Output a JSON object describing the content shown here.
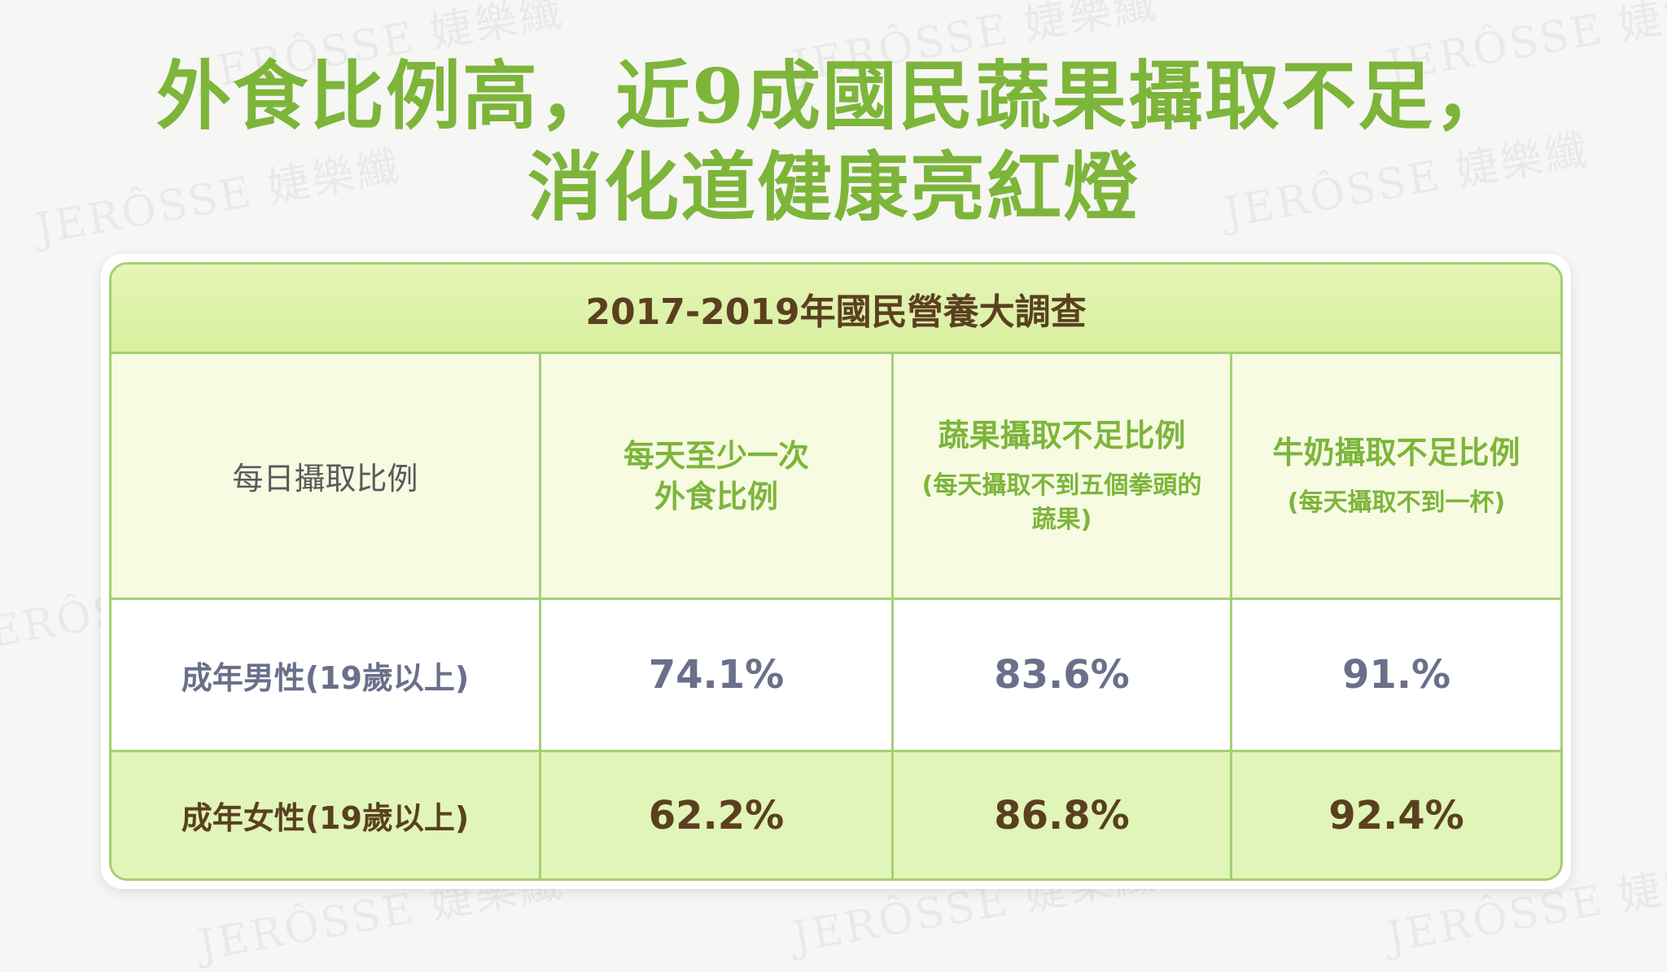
{
  "watermark": {
    "brand": "JERÔSSE",
    "brand_cn": "婕樂纖"
  },
  "headline": {
    "line1": "外食比例高，近9成國民蔬果攝取不足，",
    "line2": "消化道健康亮紅燈"
  },
  "table": {
    "title": "2017-2019年國民營養大調查",
    "corner_label": "每日攝取比例",
    "columns": [
      {
        "label_line1": "每天至少一次",
        "label_line2": "外食比例",
        "note": ""
      },
      {
        "label_line1": "蔬果攝取不足比例",
        "label_line2": "",
        "note": "(每天攝取不到五個拳頭的蔬果)"
      },
      {
        "label_line1": "牛奶攝取不足比例",
        "label_line2": "",
        "note": "(每天攝取不到一杯)"
      }
    ],
    "rows": [
      {
        "label": "成年男性(19歲以上)",
        "values": [
          "74.1%",
          "83.6%",
          "91.%"
        ]
      },
      {
        "label": "成年女性(19歲以上)",
        "values": [
          "62.2%",
          "86.8%",
          "92.4%"
        ]
      }
    ]
  },
  "colors": {
    "headline_green": "#7db53a",
    "table_border": "#a5cf74",
    "title_bar": "#d9ef9f",
    "female_row_bg": "#e1f5b9",
    "male_text": "#6a6f8a",
    "female_text": "#5a4020"
  }
}
